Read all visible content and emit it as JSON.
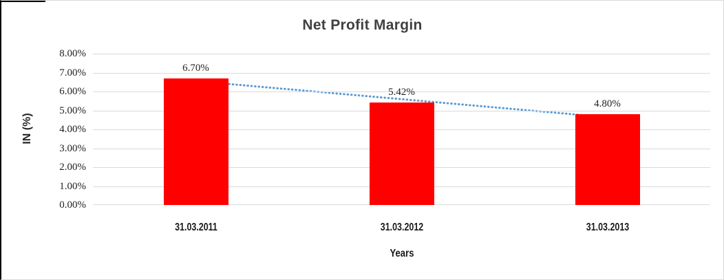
{
  "frame": {
    "border_color": "#d9d9d9",
    "accent_border_color": "#000000",
    "background": "#ffffff"
  },
  "chart_data": {
    "type": "bar",
    "title": "Net Profit Margin",
    "categories": [
      "31.03.2011",
      "31.03.2012",
      "31.03.2013"
    ],
    "series": [
      {
        "name": "Net Profit Margin",
        "values": [
          6.7,
          5.42,
          4.8
        ]
      }
    ],
    "data_labels": [
      "6.70%",
      "5.42%",
      "4.80%"
    ],
    "y_ticks": [
      "8.00%",
      "7.00%",
      "6.00%",
      "5.00%",
      "4.00%",
      "3.00%",
      "2.00%",
      "1.00%",
      "0.00%"
    ],
    "ylim": [
      0,
      8
    ],
    "xlabel": "Years",
    "ylabel": "IN (%)",
    "grid": true,
    "legend": "none",
    "colors": {
      "bar": "#FF0000",
      "trendline": "#5B9BD5",
      "gridline": "#D9D9D9",
      "title_text": "#404040",
      "tick_text": "#1F1F1F"
    },
    "trendline": {
      "style": "dotted",
      "from_category_index": 0,
      "to_category_index": 2,
      "from_value": 6.55,
      "to_value": 4.65
    }
  }
}
